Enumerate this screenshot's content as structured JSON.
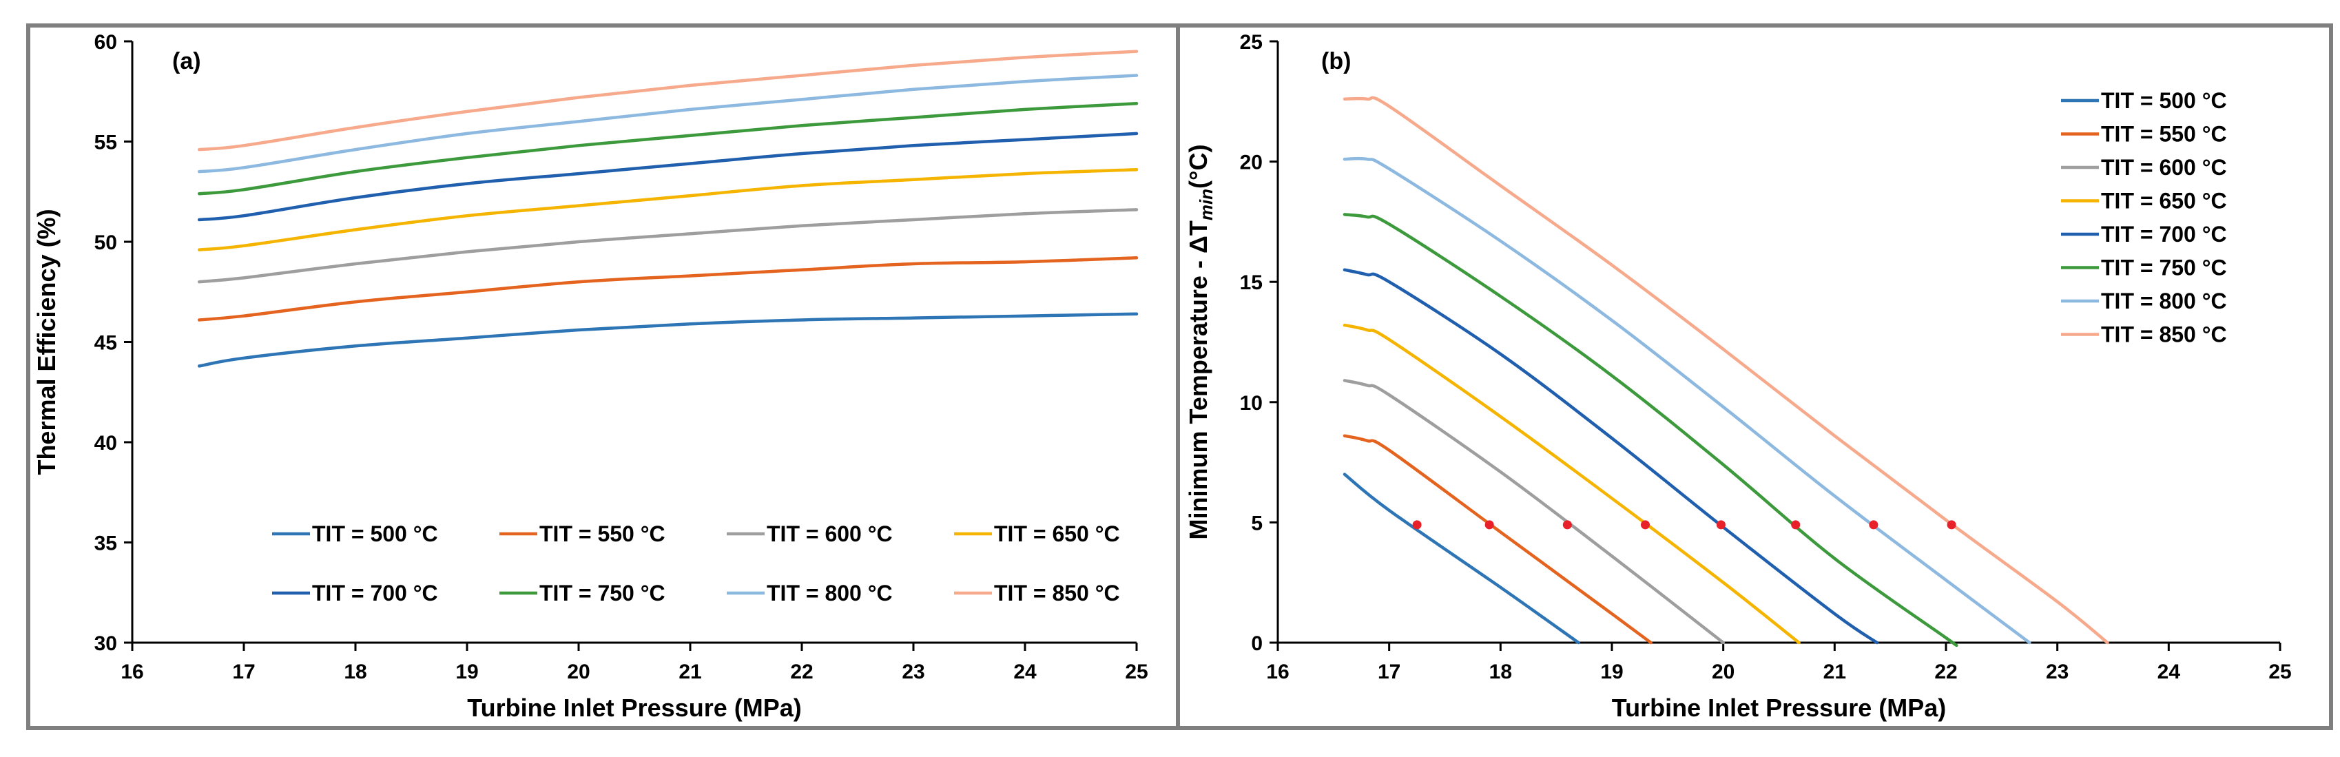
{
  "chart_data": [
    {
      "type": "line",
      "panel_label": "(a)",
      "xlabel": "Turbine Inlet Pressure (MPa)",
      "ylabel": "Thermal Efficiency (%)",
      "xlim": [
        16,
        25
      ],
      "ylim": [
        30,
        60
      ],
      "x_ticks": [
        16,
        17,
        18,
        19,
        20,
        21,
        22,
        23,
        24,
        25
      ],
      "y_ticks": [
        30,
        35,
        40,
        45,
        50,
        55,
        60
      ],
      "legend_position": "bottom",
      "x": [
        16.6,
        17,
        18,
        19,
        20,
        21,
        22,
        23,
        24,
        25
      ],
      "series": [
        {
          "name": "TIT = 500 °C",
          "color": "#2E75B6",
          "values": [
            43.8,
            44.2,
            44.8,
            45.2,
            45.6,
            45.9,
            46.1,
            46.2,
            46.3,
            46.4
          ]
        },
        {
          "name": "TIT = 550 °C",
          "color": "#E4631E",
          "values": [
            46.1,
            46.3,
            47.0,
            47.5,
            48.0,
            48.3,
            48.6,
            48.9,
            49.0,
            49.2
          ]
        },
        {
          "name": "TIT = 600 °C",
          "color": "#9E9E9E",
          "values": [
            48.0,
            48.2,
            48.9,
            49.5,
            50.0,
            50.4,
            50.8,
            51.1,
            51.4,
            51.6
          ]
        },
        {
          "name": "TIT = 650 °C",
          "color": "#F4B400",
          "values": [
            49.6,
            49.8,
            50.6,
            51.3,
            51.8,
            52.3,
            52.8,
            53.1,
            53.4,
            53.6
          ]
        },
        {
          "name": "TIT = 700 °C",
          "color": "#1F5FAD",
          "values": [
            51.1,
            51.3,
            52.2,
            52.9,
            53.4,
            53.9,
            54.4,
            54.8,
            55.1,
            55.4
          ]
        },
        {
          "name": "TIT = 750 °C",
          "color": "#3C9A3C",
          "values": [
            52.4,
            52.6,
            53.5,
            54.2,
            54.8,
            55.3,
            55.8,
            56.2,
            56.6,
            56.9
          ]
        },
        {
          "name": "TIT = 800 °C",
          "color": "#8DB9E0",
          "values": [
            53.5,
            53.7,
            54.6,
            55.4,
            56.0,
            56.6,
            57.1,
            57.6,
            58.0,
            58.3
          ]
        },
        {
          "name": "TIT = 850 °C",
          "color": "#F7A98C",
          "values": [
            54.6,
            54.8,
            55.7,
            56.5,
            57.2,
            57.8,
            58.3,
            58.8,
            59.2,
            59.5
          ]
        }
      ]
    },
    {
      "type": "line",
      "panel_label": "(b)",
      "xlabel": "Turbine Inlet Pressure (MPa)",
      "ylabel": "Minimum Temperature - ΔT",
      "ylabel_subscript": "min",
      "ylabel_unit": "(°C)",
      "xlim": [
        16,
        25
      ],
      "ylim": [
        0,
        25
      ],
      "x_ticks": [
        16,
        17,
        18,
        19,
        20,
        21,
        22,
        23,
        24,
        25
      ],
      "y_ticks": [
        0,
        5,
        10,
        15,
        20,
        25
      ],
      "legend_position": "top-right",
      "series": [
        {
          "name": "TIT = 500 °C",
          "color": "#2E75B6",
          "x": [
            16.6,
            17.0,
            18.0,
            18.7
          ],
          "values": [
            7.0,
            5.5,
            2.3,
            0
          ]
        },
        {
          "name": "TIT = 550 °C",
          "color": "#E4631E",
          "x": [
            16.6,
            16.8,
            17.0,
            18.0,
            19.0,
            19.35
          ],
          "values": [
            8.6,
            8.4,
            8.0,
            4.6,
            1.2,
            0
          ]
        },
        {
          "name": "TIT = 600 °C",
          "color": "#9E9E9E",
          "x": [
            16.6,
            16.8,
            17.0,
            18.0,
            19.0,
            20.0
          ],
          "values": [
            10.9,
            10.7,
            10.3,
            7.1,
            3.6,
            0
          ]
        },
        {
          "name": "TIT = 650 °C",
          "color": "#F4B400",
          "x": [
            16.6,
            16.8,
            17.0,
            18.0,
            19.0,
            20.0,
            20.68
          ],
          "values": [
            13.2,
            13.0,
            12.6,
            9.4,
            6.0,
            2.5,
            0
          ]
        },
        {
          "name": "TIT = 700 °C",
          "color": "#1F5FAD",
          "x": [
            16.6,
            16.8,
            17.0,
            18.0,
            19.0,
            20.0,
            21.0,
            21.38
          ],
          "values": [
            15.5,
            15.3,
            15.0,
            12.0,
            8.5,
            4.8,
            1.2,
            0
          ]
        },
        {
          "name": "TIT = 750 °C",
          "color": "#3C9A3C",
          "x": [
            16.6,
            16.8,
            17.0,
            18.0,
            19.0,
            20.0,
            21.0,
            22.0,
            22.06
          ],
          "values": [
            17.8,
            17.7,
            17.4,
            14.4,
            11.1,
            7.4,
            3.5,
            0.2,
            0
          ]
        },
        {
          "name": "TIT = 800 °C",
          "color": "#8DB9E0",
          "x": [
            16.6,
            16.8,
            17.0,
            18.0,
            19.0,
            20.0,
            21.0,
            22.0,
            22.75
          ],
          "values": [
            20.1,
            20.1,
            19.7,
            16.7,
            13.4,
            9.8,
            6.1,
            2.6,
            0
          ]
        },
        {
          "name": "TIT = 850 °C",
          "color": "#F7A98C",
          "x": [
            16.6,
            16.8,
            17.0,
            18.0,
            19.0,
            20.0,
            21.0,
            22.0,
            23.0,
            23.45
          ],
          "values": [
            22.6,
            22.6,
            22.3,
            19.0,
            15.7,
            12.2,
            8.6,
            5.1,
            1.7,
            0
          ]
        }
      ],
      "markers": {
        "name": "ΔT_min = 5 °C points",
        "color": "#E8202A",
        "x": [
          17.25,
          17.9,
          18.6,
          19.3,
          19.98,
          20.65,
          21.35,
          22.05
        ],
        "y": [
          4.9,
          4.9,
          4.9,
          4.9,
          4.9,
          4.9,
          4.9,
          4.9
        ]
      }
    }
  ]
}
